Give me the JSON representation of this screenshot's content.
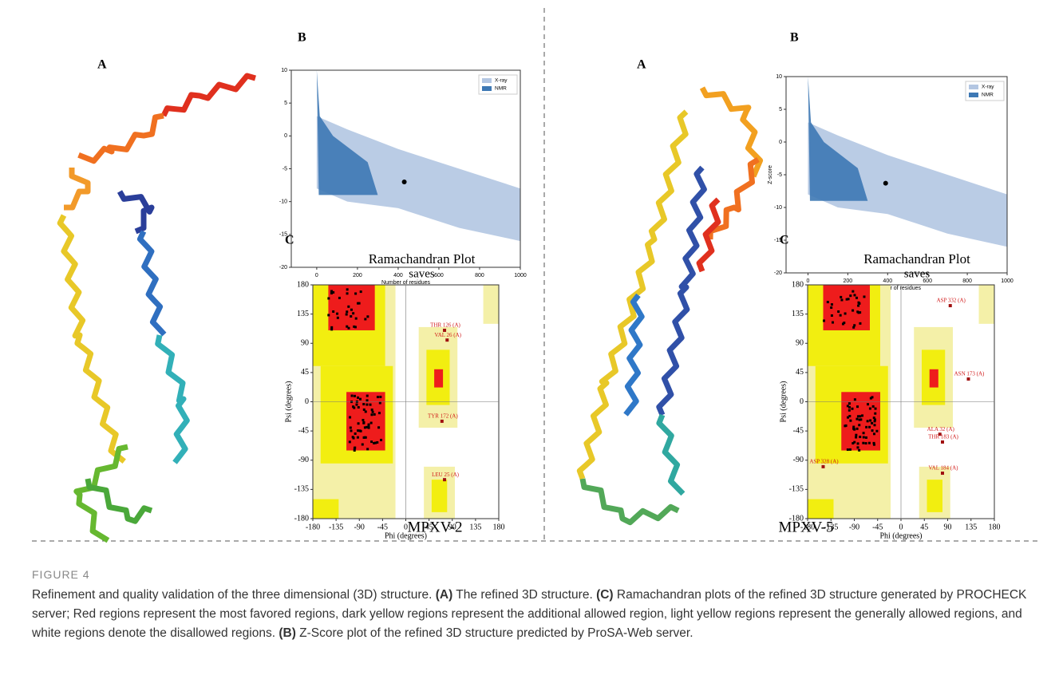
{
  "panels": [
    {
      "name": "MPXV-2",
      "structure_label": "A",
      "zscore": {
        "label": "B",
        "xlabel": "Number of residues",
        "xlim": [
          -125,
          1000
        ],
        "ylim": [
          -20,
          10
        ],
        "xticks": [
          0,
          200,
          400,
          600,
          800,
          1000
        ],
        "yticks": [
          10,
          5,
          0,
          -5,
          -10,
          -15,
          -20
        ],
        "legend": [
          {
            "name": "X-ray",
            "color": "#b3c6e2"
          },
          {
            "name": "NMR",
            "color": "#3d78b4"
          }
        ],
        "point": {
          "x": 430,
          "y": -7
        }
      },
      "ramachandran": {
        "label": "C",
        "title": "Ramachandran Plot",
        "subtitle": "saves",
        "xlabel": "Phi (degrees)",
        "ylabel": "Psi (degrees)",
        "xlim": [
          -180,
          180
        ],
        "ylim": [
          -180,
          180
        ],
        "xticks": [
          -180,
          -135,
          -90,
          -45,
          0,
          45,
          90,
          135,
          180
        ],
        "yticks": [
          180,
          135,
          90,
          45,
          0,
          -45,
          -90,
          -135,
          -180
        ],
        "residues": [
          {
            "text": "THR 126 (A)",
            "phi": 75,
            "psi": 110
          },
          {
            "text": "VAL 26 (A)",
            "phi": 80,
            "psi": 95
          },
          {
            "text": "TYR 172 (A)",
            "phi": 70,
            "psi": -30
          },
          {
            "text": "LEU 25 (A)",
            "phi": 75,
            "psi": -120
          }
        ]
      }
    },
    {
      "name": "MPXV-5",
      "structure_label": "A",
      "zscore": {
        "label": "B",
        "xlabel": "Number of residues",
        "ylabel": "Z-score",
        "xlim": [
          -110,
          1000
        ],
        "ylim": [
          -20,
          10
        ],
        "xticks": [
          0,
          200,
          400,
          600,
          800,
          1000
        ],
        "yticks": [
          10,
          5,
          0,
          -5,
          -10,
          -15,
          -20
        ],
        "legend": [
          {
            "name": "X-ray",
            "color": "#b3c6e2"
          },
          {
            "name": "NMR",
            "color": "#3d78b4"
          }
        ],
        "point": {
          "x": 390,
          "y": -6.3
        }
      },
      "ramachandran": {
        "label": "C",
        "title": "Ramachandran Plot",
        "subtitle": "saves",
        "xlabel": "Phi (degrees)",
        "ylabel": "Psi (degrees)",
        "xlim": [
          -180,
          180
        ],
        "ylim": [
          -180,
          180
        ],
        "xticks": [
          -180,
          -135,
          -90,
          -45,
          0,
          45,
          90,
          135,
          180
        ],
        "yticks": [
          180,
          135,
          90,
          45,
          0,
          -45,
          -90,
          -135,
          -180
        ],
        "residues": [
          {
            "text": "ASP 332 (A)",
            "phi": 95,
            "psi": 148
          },
          {
            "text": "ASN 173 (A)",
            "phi": 130,
            "psi": 35
          },
          {
            "text": "ALA 32 (A)",
            "phi": 75,
            "psi": -50
          },
          {
            "text": "THR 183 (A)",
            "phi": 80,
            "psi": -62
          },
          {
            "text": "ASP 328 (A)",
            "phi": -150,
            "psi": -100
          },
          {
            "text": "VAL 184 (A)",
            "phi": 80,
            "psi": -110
          }
        ]
      }
    }
  ],
  "caption": {
    "figure": "FIGURE 4",
    "runs": [
      {
        "text": "Refinement and quality validation of the three dimensional (3D) structure. ",
        "bold": false
      },
      {
        "text": "(A)",
        "bold": true
      },
      {
        "text": " The refined 3D structure. ",
        "bold": false
      },
      {
        "text": "(C)",
        "bold": true
      },
      {
        "text": " Ramachandran plots of the refined 3D structure generated by PROCHECK server; Red regions represent the most favored regions, dark yellow regions represent the additional allowed region, light yellow regions represent the generally allowed regions, and white regions denote the disallowed regions. ",
        "bold": false
      },
      {
        "text": "(B)",
        "bold": true
      },
      {
        "text": " Z-Score plot of the refined 3D structure predicted by ProSA-Web server.",
        "bold": false
      }
    ]
  }
}
